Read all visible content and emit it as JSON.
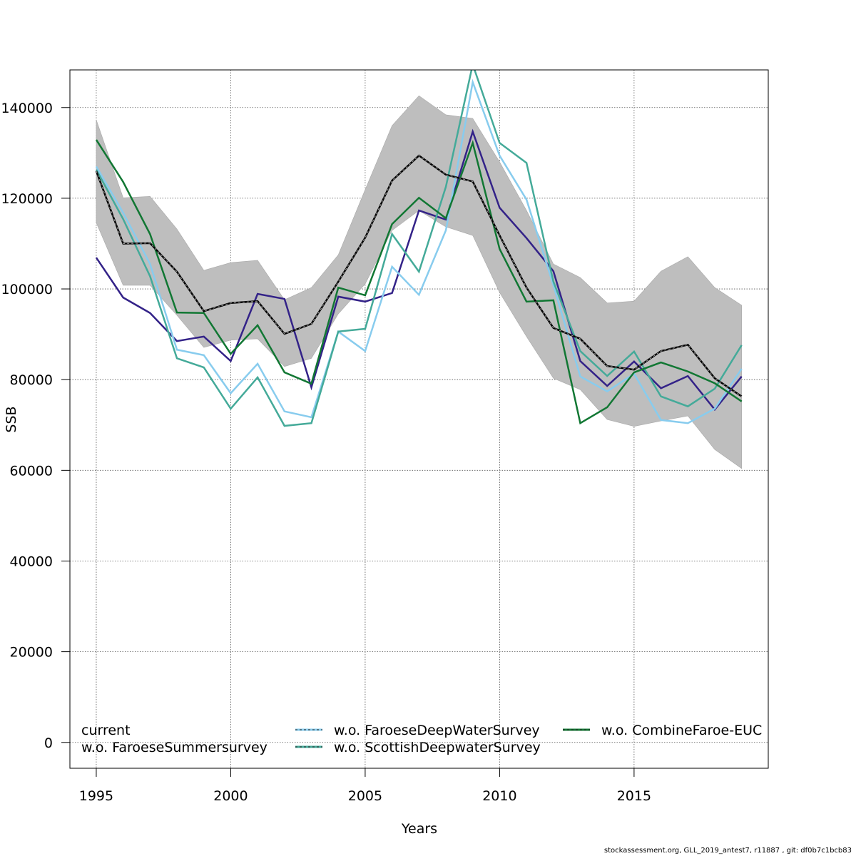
{
  "chart_data": {
    "type": "line",
    "title": "",
    "xlabel": "Years",
    "ylabel": "SSB",
    "xlim": [
      1994.02,
      2019.99
    ],
    "ylim": [
      -5700,
      148300
    ],
    "grid": true,
    "x_ticks": [
      1995,
      2000,
      2005,
      2010,
      2015
    ],
    "y_ticks": [
      0,
      20000,
      40000,
      60000,
      80000,
      100000,
      120000,
      140000
    ],
    "x_tick_labels": [
      "1995",
      "2000",
      "2005",
      "2010",
      "2015"
    ],
    "y_tick_labels": [
      "0",
      "20000",
      "40000",
      "60000",
      "80000",
      "100000",
      "120000",
      "140000"
    ],
    "x": [
      1995,
      1996,
      1997,
      1998,
      1999,
      2000,
      2001,
      2002,
      2003,
      2004,
      2005,
      2006,
      2007,
      2008,
      2009,
      2010,
      2011,
      2012,
      2013,
      2014,
      2015,
      2016,
      2017,
      2018,
      2019
    ],
    "confidence_band": {
      "name": "current 95% CI",
      "color": "#bebebe",
      "lower": [
        114600,
        100800,
        100800,
        94200,
        87100,
        88700,
        89000,
        82900,
        84700,
        94500,
        101100,
        112900,
        117300,
        113700,
        111800,
        99200,
        89500,
        80300,
        77800,
        71200,
        69700,
        70900,
        72000,
        64600,
        60400
      ],
      "upper": [
        137300,
        120100,
        120400,
        113200,
        104100,
        105800,
        106300,
        97600,
        100300,
        107500,
        121900,
        136000,
        142600,
        138400,
        137600,
        128000,
        117300,
        105500,
        102500,
        96900,
        97300,
        103900,
        107100,
        100300,
        96400
      ]
    },
    "series": [
      {
        "name": "current",
        "color": "#000000",
        "style": "dashed",
        "values": [
          126000,
          110000,
          110100,
          103800,
          95100,
          96900,
          97300,
          90100,
          92300,
          101600,
          111300,
          123900,
          129400,
          125200,
          123700,
          111800,
          100300,
          91400,
          89000,
          83000,
          82200,
          86300,
          87700,
          80300,
          76300
        ]
      },
      {
        "name": "w.o. FaroeseSummersurvey",
        "color": "#332288",
        "style": "solid",
        "values": [
          106900,
          98100,
          94700,
          88500,
          89500,
          84100,
          98900,
          97800,
          78300,
          98300,
          97200,
          99100,
          117300,
          115300,
          134700,
          117900,
          111200,
          103900,
          84100,
          78600,
          84000,
          78100,
          80800,
          73400,
          80700
        ]
      },
      {
        "name": "w.o. FaroeseDeepWaterSurvey",
        "color": "#88ccee",
        "style": "solid",
        "values": [
          127000,
          116800,
          105500,
          86600,
          85400,
          77000,
          83500,
          73000,
          71700,
          90600,
          86300,
          104900,
          98700,
          112900,
          145600,
          129400,
          119700,
          100800,
          80700,
          77400,
          81300,
          71100,
          70400,
          73600,
          82400
        ]
      },
      {
        "name": "w.o. ScottishDeepwaterSurvey",
        "color": "#44aa99",
        "style": "solid",
        "values": [
          126300,
          115400,
          102800,
          84700,
          82700,
          73600,
          80500,
          69800,
          70400,
          90600,
          91200,
          112100,
          103800,
          122500,
          149500,
          132200,
          127800,
          101600,
          86300,
          80800,
          86200,
          76300,
          74100,
          78000,
          87600
        ]
      },
      {
        "name": "w.o. CombineFaroe-EUC",
        "color": "#117733",
        "style": "solid",
        "values": [
          132900,
          123600,
          112100,
          94800,
          94700,
          85700,
          92000,
          81600,
          79100,
          100300,
          98600,
          114300,
          120100,
          115600,
          132200,
          108800,
          97200,
          97500,
          70400,
          73900,
          81600,
          83800,
          81800,
          79200,
          75200
        ]
      }
    ],
    "legend": {
      "placement": "bottom",
      "columns": 3,
      "entries": [
        {
          "label": "current",
          "color": "#000000"
        },
        {
          "label": "w.o. FaroeseSummersurvey",
          "color": "#332288"
        },
        {
          "label": "w.o. FaroeseDeepWaterSurvey",
          "color": "#88ccee"
        },
        {
          "label": "w.o. ScottishDeepwaterSurvey",
          "color": "#44aa99"
        },
        {
          "label": "w.o. CombineFaroe-EUC",
          "color": "#117733"
        }
      ]
    }
  },
  "footer": "stockassessment.org, GLL_2019_antest7, r11887 , git: df0b7c1bcb83"
}
